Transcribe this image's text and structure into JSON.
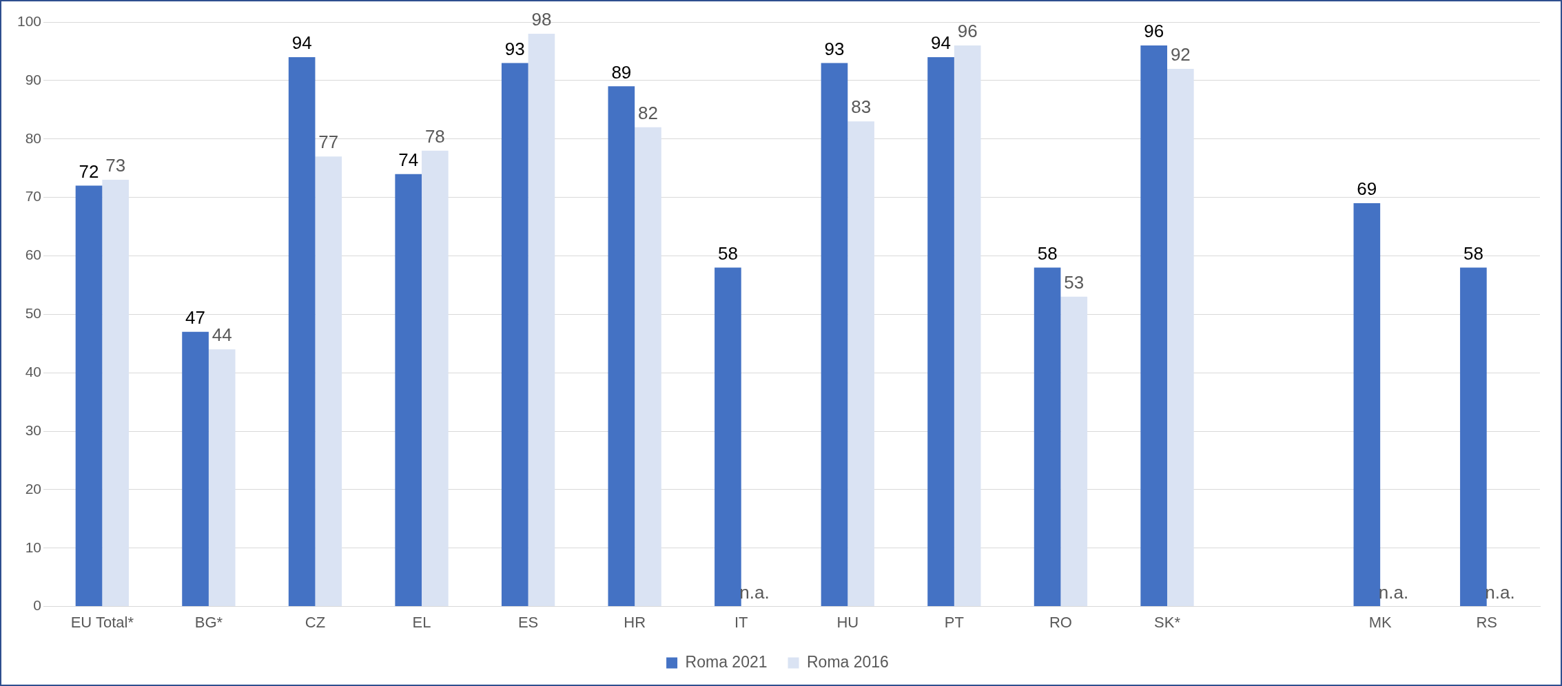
{
  "chart_data": {
    "type": "bar",
    "categories": [
      "EU Total*",
      "BG*",
      "CZ",
      "EL",
      "ES",
      "HR",
      "IT",
      "HU",
      "PT",
      "RO",
      "SK*",
      null,
      "MK",
      "RS"
    ],
    "series": [
      {
        "name": "Roma 2021",
        "color": "#4472c4",
        "values": [
          72,
          47,
          94,
          74,
          93,
          89,
          58,
          93,
          94,
          58,
          96,
          null,
          69,
          58
        ],
        "value_labels": [
          "72",
          "47",
          "94",
          "74",
          "93",
          "89",
          "58",
          "93",
          "94",
          "58",
          "96",
          null,
          "69",
          "58"
        ]
      },
      {
        "name": "Roma 2016",
        "color": "#dae3f3",
        "values": [
          73,
          44,
          77,
          78,
          98,
          82,
          null,
          83,
          96,
          53,
          92,
          null,
          null,
          null
        ],
        "value_labels": [
          "73",
          "44",
          "77",
          "78",
          "98",
          "82",
          "n.a.",
          "83",
          "96",
          "53",
          "92",
          null,
          "n.a.",
          "n.a."
        ]
      }
    ],
    "ylim": [
      0,
      100
    ],
    "yticks": [
      0,
      10,
      20,
      30,
      40,
      50,
      60,
      70,
      80,
      90,
      100
    ],
    "grid": "y",
    "legend": "bottom"
  }
}
